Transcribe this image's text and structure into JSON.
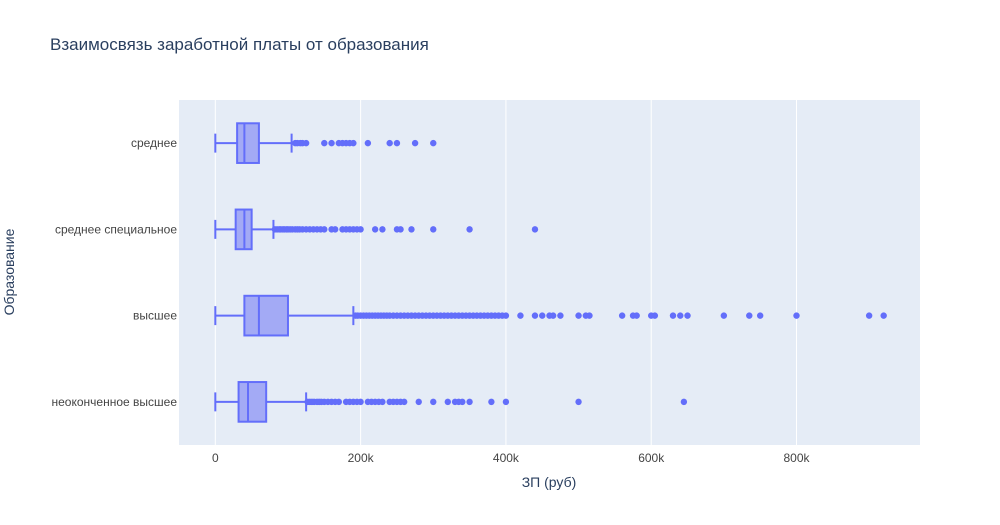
{
  "chart_data": {
    "type": "box",
    "orientation": "horizontal",
    "title": "Взаимосвязь заработной платы от образования",
    "xlabel": "ЗП (руб)",
    "ylabel": "Образование",
    "xlim": [
      -50000,
      970000
    ],
    "x_ticks": [
      {
        "value": 0,
        "label": "0"
      },
      {
        "value": 200000,
        "label": "200k"
      },
      {
        "value": 400000,
        "label": "400k"
      },
      {
        "value": 600000,
        "label": "600k"
      },
      {
        "value": 800000,
        "label": "800k"
      }
    ],
    "grid": true,
    "colors": {
      "plot_bg": "#E5ECF6",
      "grid": "#FFFFFF",
      "series": "#636EFA",
      "box_fill": "#A3AAF5",
      "text": "#2A3F5F",
      "tick_text": "#444444"
    },
    "categories": [
      "среднее",
      "среднее специальное",
      "высшее",
      "неоконченное высшее"
    ],
    "boxes": [
      {
        "category": "среднее",
        "lowerfence": 0,
        "q1": 30000,
        "median": 40000,
        "q3": 60000,
        "upperfence": 105000,
        "outliers": [
          110000,
          113000,
          117000,
          120000,
          125000,
          150000,
          160000,
          170000,
          175000,
          180000,
          185000,
          190000,
          210000,
          240000,
          250000,
          275000,
          300000
        ]
      },
      {
        "category": "среднее специальное",
        "lowerfence": 0,
        "q1": 28000,
        "median": 40000,
        "q3": 50000,
        "upperfence": 80000,
        "outliers": [
          82000,
          85000,
          88000,
          90000,
          93000,
          95000,
          98000,
          100000,
          103000,
          106000,
          110000,
          113000,
          116000,
          120000,
          125000,
          130000,
          135000,
          140000,
          145000,
          150000,
          160000,
          165000,
          175000,
          180000,
          185000,
          190000,
          195000,
          200000,
          220000,
          230000,
          250000,
          255000,
          270000,
          300000,
          350000,
          440000
        ]
      },
      {
        "category": "высшее",
        "lowerfence": 0,
        "q1": 40000,
        "median": 60000,
        "q3": 100000,
        "upperfence": 190000,
        "outliers": [
          193000,
          196000,
          200000,
          204000,
          208000,
          212000,
          216000,
          220000,
          224000,
          228000,
          232000,
          236000,
          240000,
          245000,
          250000,
          255000,
          260000,
          265000,
          270000,
          275000,
          280000,
          285000,
          290000,
          295000,
          300000,
          305000,
          310000,
          315000,
          320000,
          325000,
          330000,
          335000,
          340000,
          345000,
          350000,
          355000,
          360000,
          365000,
          370000,
          375000,
          380000,
          385000,
          390000,
          395000,
          400000,
          420000,
          440000,
          450000,
          460000,
          465000,
          475000,
          500000,
          510000,
          515000,
          560000,
          575000,
          580000,
          600000,
          605000,
          630000,
          640000,
          650000,
          700000,
          735000,
          750000,
          800000,
          900000,
          920000
        ]
      },
      {
        "category": "неоконченное высшее",
        "lowerfence": 0,
        "q1": 32000,
        "median": 45000,
        "q3": 70000,
        "upperfence": 125000,
        "outliers": [
          127000,
          130000,
          133000,
          136000,
          140000,
          143000,
          146000,
          150000,
          155000,
          160000,
          165000,
          170000,
          180000,
          185000,
          190000,
          195000,
          200000,
          210000,
          215000,
          220000,
          225000,
          230000,
          240000,
          245000,
          250000,
          255000,
          260000,
          280000,
          300000,
          320000,
          330000,
          335000,
          340000,
          350000,
          380000,
          400000,
          500000,
          645000
        ]
      }
    ]
  }
}
